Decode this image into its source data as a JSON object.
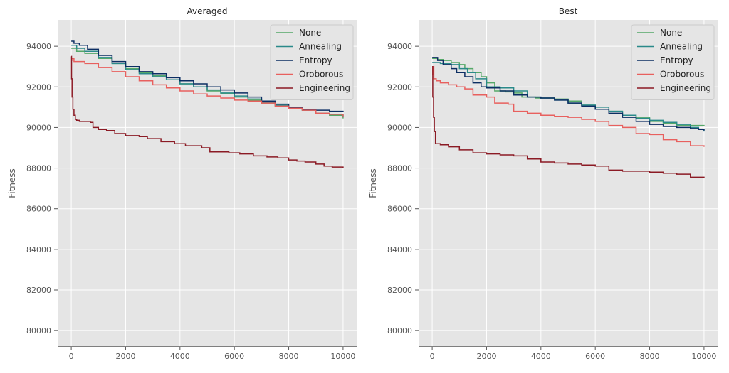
{
  "chart_data": [
    {
      "type": "line",
      "title": "Averaged",
      "xlabel": "",
      "ylabel": "Fitness",
      "xlim": [
        -500,
        10500
      ],
      "ylim": [
        79200,
        95300
      ],
      "xticks": [
        0,
        2000,
        4000,
        6000,
        8000,
        10000
      ],
      "yticks": [
        80000,
        82000,
        84000,
        86000,
        88000,
        90000,
        92000,
        94000
      ],
      "grid": true,
      "legend_position": "top-right",
      "series": [
        {
          "name": "None",
          "color": "#55a868",
          "step": true,
          "x": [
            0,
            200,
            500,
            1000,
            1500,
            2000,
            2500,
            3000,
            3500,
            4000,
            4500,
            5000,
            5500,
            6000,
            6500,
            7000,
            7500,
            8000,
            8500,
            9000,
            9500,
            10000
          ],
          "y": [
            93900,
            93750,
            93650,
            93400,
            93150,
            92900,
            92700,
            92550,
            92350,
            92150,
            92000,
            91800,
            91650,
            91500,
            91350,
            91200,
            91050,
            90950,
            90850,
            90700,
            90600,
            90450
          ]
        },
        {
          "name": "Annealing",
          "color": "#2a8a8a",
          "step": true,
          "x": [
            0,
            200,
            500,
            1000,
            1500,
            2000,
            2500,
            3000,
            3500,
            4000,
            4500,
            5000,
            5500,
            6000,
            6500,
            7000,
            7500,
            8000,
            8500,
            9000,
            9500,
            10000
          ],
          "y": [
            94050,
            93900,
            93750,
            93450,
            93150,
            92850,
            92650,
            92500,
            92350,
            92150,
            92000,
            91850,
            91700,
            91550,
            91400,
            91250,
            91100,
            90950,
            90850,
            90700,
            90650,
            90550
          ]
        },
        {
          "name": "Entropy",
          "color": "#0c2e63",
          "step": true,
          "x": [
            0,
            100,
            300,
            600,
            1000,
            1500,
            2000,
            2500,
            3000,
            3500,
            4000,
            4500,
            5000,
            5500,
            6000,
            6500,
            7000,
            7500,
            8000,
            8500,
            9000,
            9500,
            10000
          ],
          "y": [
            94250,
            94150,
            94050,
            93850,
            93550,
            93250,
            93000,
            92750,
            92650,
            92450,
            92300,
            92150,
            92000,
            91850,
            91700,
            91500,
            91300,
            91150,
            91000,
            90900,
            90850,
            90800,
            90750
          ]
        },
        {
          "name": "Oroborous",
          "color": "#e8605e",
          "step": true,
          "x": [
            0,
            20,
            100,
            500,
            1000,
            1500,
            2000,
            2500,
            3000,
            3500,
            4000,
            4500,
            5000,
            5500,
            6000,
            6500,
            7000,
            7500,
            8000,
            8500,
            9000,
            9500,
            10000
          ],
          "y": [
            93300,
            93400,
            93250,
            93150,
            92950,
            92750,
            92500,
            92300,
            92100,
            91950,
            91800,
            91650,
            91550,
            91450,
            91350,
            91300,
            91200,
            91050,
            90950,
            90850,
            90700,
            90650,
            90550
          ]
        },
        {
          "name": "Engineering",
          "color": "#8b1a24",
          "step": true,
          "x": [
            0,
            10,
            30,
            60,
            100,
            150,
            200,
            300,
            500,
            700,
            800,
            1000,
            1300,
            1600,
            2000,
            2500,
            2800,
            3300,
            3800,
            4200,
            4800,
            5100,
            5800,
            6200,
            6700,
            7200,
            7600,
            8000,
            8300,
            8600,
            9000,
            9300,
            9600,
            10000
          ],
          "y": [
            93500,
            92400,
            91500,
            90900,
            90600,
            90400,
            90350,
            90300,
            90300,
            90250,
            90000,
            89900,
            89850,
            89700,
            89600,
            89550,
            89450,
            89300,
            89200,
            89100,
            89000,
            88800,
            88750,
            88700,
            88600,
            88550,
            88500,
            88400,
            88350,
            88300,
            88200,
            88100,
            88050,
            88000
          ]
        }
      ]
    },
    {
      "type": "line",
      "title": "Best",
      "xlabel": "",
      "ylabel": "Fitness",
      "xlim": [
        -500,
        10500
      ],
      "ylim": [
        79200,
        95300
      ],
      "xticks": [
        0,
        2000,
        4000,
        6000,
        8000,
        10000
      ],
      "yticks": [
        80000,
        82000,
        84000,
        86000,
        88000,
        90000,
        92000,
        94000
      ],
      "grid": true,
      "legend_position": "top-right",
      "series": [
        {
          "name": "None",
          "color": "#55a868",
          "step": true,
          "x": [
            0,
            200,
            400,
            700,
            1000,
            1200,
            1500,
            1800,
            2000,
            2300,
            2700,
            3000,
            3300,
            3800,
            4500,
            5000,
            5500,
            6000,
            6500,
            7000,
            7500,
            8000,
            8500,
            9000,
            10000
          ],
          "y": [
            93400,
            93350,
            93300,
            93200,
            93100,
            92900,
            92700,
            92500,
            92200,
            91800,
            91750,
            91700,
            91500,
            91450,
            91400,
            91300,
            91100,
            90900,
            90800,
            90600,
            90500,
            90300,
            90200,
            90100,
            90050
          ]
        },
        {
          "name": "Annealing",
          "color": "#2a8a8a",
          "step": true,
          "x": [
            0,
            300,
            700,
            1000,
            1300,
            1600,
            2000,
            2500,
            3000,
            3500,
            4000,
            4500,
            5000,
            5500,
            6000,
            6500,
            7000,
            7500,
            8000,
            8500,
            9000,
            9500,
            9800,
            10000
          ],
          "y": [
            93200,
            93150,
            93100,
            92900,
            92700,
            92400,
            92000,
            91950,
            91800,
            91500,
            91450,
            91350,
            91200,
            91100,
            91000,
            90800,
            90600,
            90450,
            90350,
            90250,
            90150,
            90000,
            89900,
            89800
          ]
        },
        {
          "name": "Entropy",
          "color": "#0c2e63",
          "step": true,
          "x": [
            0,
            200,
            400,
            700,
            900,
            1200,
            1500,
            1800,
            2000,
            2500,
            3000,
            3500,
            4000,
            4500,
            5000,
            5500,
            6000,
            6500,
            7000,
            7500,
            8000,
            8500,
            9000,
            9500,
            9800,
            10000
          ],
          "y": [
            93450,
            93300,
            93100,
            92900,
            92700,
            92500,
            92200,
            92000,
            91950,
            91800,
            91600,
            91500,
            91450,
            91350,
            91200,
            91050,
            90900,
            90700,
            90500,
            90300,
            90150,
            90050,
            90000,
            89950,
            89900,
            89850
          ]
        },
        {
          "name": "Oroborous",
          "color": "#e8605e",
          "step": true,
          "x": [
            0,
            20,
            60,
            150,
            300,
            600,
            900,
            1200,
            1500,
            2000,
            2300,
            2800,
            3000,
            3500,
            4000,
            4500,
            5000,
            5500,
            6000,
            6500,
            7000,
            7500,
            8000,
            8500,
            9000,
            9500,
            10000
          ],
          "y": [
            92600,
            93000,
            92400,
            92300,
            92200,
            92100,
            92000,
            91900,
            91600,
            91500,
            91200,
            91150,
            90800,
            90700,
            90600,
            90550,
            90500,
            90400,
            90300,
            90100,
            90000,
            89700,
            89650,
            89400,
            89300,
            89100,
            89050
          ]
        },
        {
          "name": "Engineering",
          "color": "#8b1a24",
          "step": true,
          "x": [
            0,
            20,
            50,
            80,
            120,
            300,
            600,
            1000,
            1500,
            2000,
            2500,
            3000,
            3500,
            4000,
            4500,
            5000,
            5500,
            6000,
            6500,
            7000,
            7500,
            8000,
            8500,
            9000,
            9500,
            10000
          ],
          "y": [
            93000,
            91500,
            90500,
            89800,
            89200,
            89150,
            89050,
            88900,
            88750,
            88700,
            88650,
            88600,
            88450,
            88300,
            88250,
            88200,
            88150,
            88100,
            87900,
            87850,
            87850,
            87800,
            87750,
            87700,
            87550,
            87500
          ]
        }
      ]
    }
  ]
}
